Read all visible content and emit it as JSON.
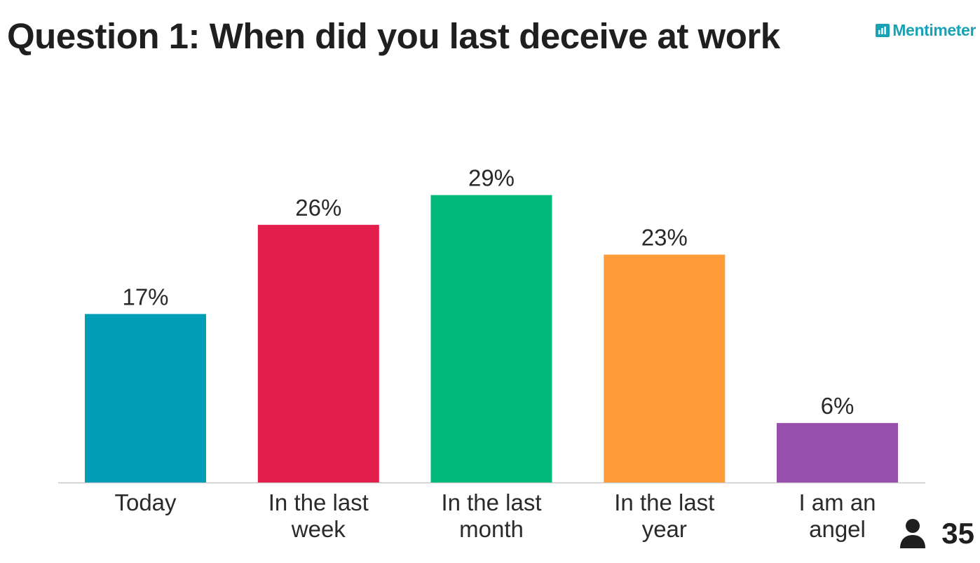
{
  "title": "Question 1: When did you last deceive at work",
  "brand": {
    "name": "Mentimeter",
    "icon": "mentimeter-logo-icon",
    "color": "#1ba1b5"
  },
  "responses": {
    "icon": "person-icon",
    "count": "35"
  },
  "chart_data": {
    "type": "bar",
    "title": "Question 1: When did you last deceive at work",
    "categories": [
      [
        "Today"
      ],
      [
        "In the last",
        "week"
      ],
      [
        "In the last",
        "month"
      ],
      [
        "In the last",
        "year"
      ],
      [
        "I am an",
        "angel"
      ]
    ],
    "values": [
      17,
      26,
      29,
      23,
      6
    ],
    "value_labels": [
      "17%",
      "26%",
      "29%",
      "23%",
      "6%"
    ],
    "colors": [
      "#009fb7",
      "#e31d4c",
      "#00b97a",
      "#ff9c3a",
      "#974fae"
    ],
    "unit": "%",
    "ylim": [
      0,
      100
    ],
    "grid": false,
    "legend": "none",
    "xlabel": "",
    "ylabel": ""
  }
}
